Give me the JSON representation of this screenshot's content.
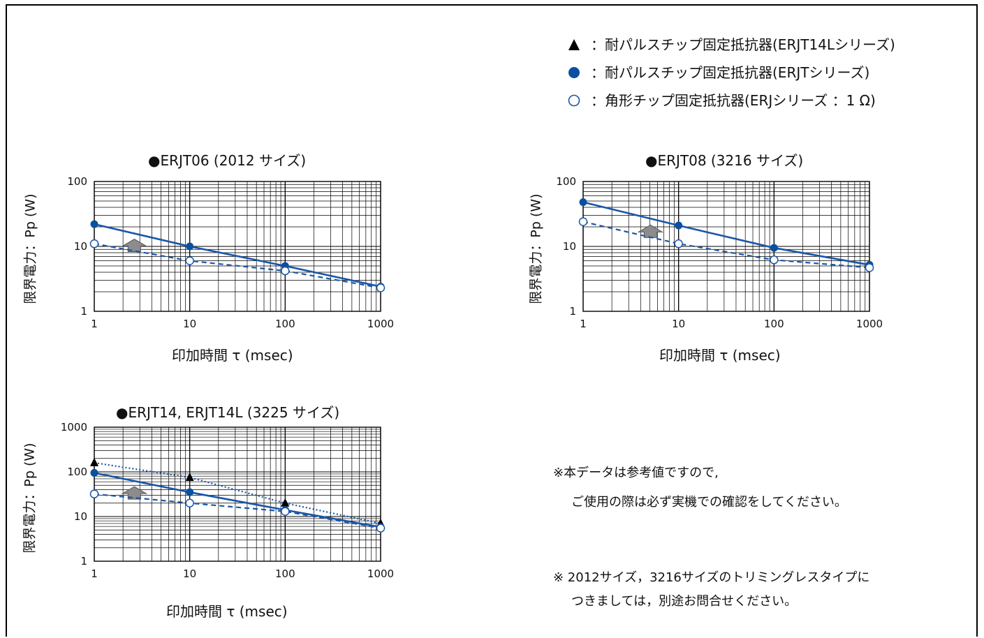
{
  "legend": [
    {
      "marker": "triangle-filled",
      "label": "：耐パルスチップ固定抵抗器(ERJT14Lシリーズ)"
    },
    {
      "marker": "circle-filled",
      "label": "：耐パルスチップ固定抵抗器(ERJTシリーズ)"
    },
    {
      "marker": "circle-open",
      "label": "：角形チップ固定抵抗器(ERJシリーズ ：1 Ω)"
    }
  ],
  "colors": {
    "series_blue": "#1a56a8",
    "marker_fill": "#0a4fa0",
    "arrow": "#8c8c8c"
  },
  "notes": {
    "note1_line1": "※本データは参考値ですので,",
    "note1_line2": "ご使用の際は必ず実機での確認をしてください。",
    "note2_line1": "※ 2012サイズ，3216サイズのトリミングレスタイプに",
    "note2_line2": "つきましては，別途お問合せください。"
  },
  "chart_data": [
    {
      "type": "line",
      "title": "●ERJT06 (2012 サイズ)",
      "xlabel": "印加時間 τ (msec)",
      "ylabel": "限界電力：Pp (W)",
      "xscale": "log",
      "yscale": "log",
      "xlim": [
        1,
        1000
      ],
      "ylim": [
        1,
        100
      ],
      "xticks": [
        "1",
        "10",
        "100",
        "1000"
      ],
      "yticks": [
        "1",
        "10",
        "100"
      ],
      "grid": true,
      "series": [
        {
          "marker": "circle-filled",
          "line": "solid",
          "x": [
            1,
            10,
            100,
            1000
          ],
          "y": [
            22,
            10,
            5,
            2.4
          ]
        },
        {
          "marker": "circle-open",
          "line": "dashed",
          "x": [
            1,
            10,
            100,
            1000
          ],
          "y": [
            11,
            6,
            4.2,
            2.3
          ]
        }
      ]
    },
    {
      "type": "line",
      "title": "●ERJT08 (3216 サイズ)",
      "xlabel": "印加時間 τ (msec)",
      "ylabel": "限界電力：Pp (W)",
      "xscale": "log",
      "yscale": "log",
      "xlim": [
        1,
        1000
      ],
      "ylim": [
        1,
        100
      ],
      "xticks": [
        "1",
        "10",
        "100",
        "1000"
      ],
      "yticks": [
        "1",
        "10",
        "100"
      ],
      "grid": true,
      "series": [
        {
          "marker": "circle-filled",
          "line": "solid",
          "x": [
            1,
            10,
            100,
            1000
          ],
          "y": [
            48,
            21,
            9.5,
            5.2
          ]
        },
        {
          "marker": "circle-open",
          "line": "dashed",
          "x": [
            1,
            10,
            100,
            1000
          ],
          "y": [
            24,
            11,
            6.2,
            4.7
          ]
        }
      ]
    },
    {
      "type": "line",
      "title": "●ERJT14, ERJT14L (3225 サイズ)",
      "xlabel": "印加時間 τ (msec)",
      "ylabel": "限界電力：Pp (W)",
      "xscale": "log",
      "yscale": "log",
      "xlim": [
        1,
        1000
      ],
      "ylim": [
        1,
        1000
      ],
      "xticks": [
        "1",
        "10",
        "100",
        "1000"
      ],
      "yticks": [
        "1",
        "10",
        "100",
        "1000"
      ],
      "grid": true,
      "series": [
        {
          "marker": "triangle-filled",
          "line": "dotted",
          "x": [
            1,
            10,
            100,
            1000
          ],
          "y": [
            160,
            75,
            20,
            7
          ]
        },
        {
          "marker": "circle-filled",
          "line": "solid",
          "x": [
            1,
            10,
            100,
            1000
          ],
          "y": [
            95,
            35,
            14,
            5.8
          ]
        },
        {
          "marker": "circle-open",
          "line": "dashed",
          "x": [
            1,
            10,
            100,
            1000
          ],
          "y": [
            32,
            20,
            13,
            5.5
          ]
        }
      ]
    }
  ]
}
